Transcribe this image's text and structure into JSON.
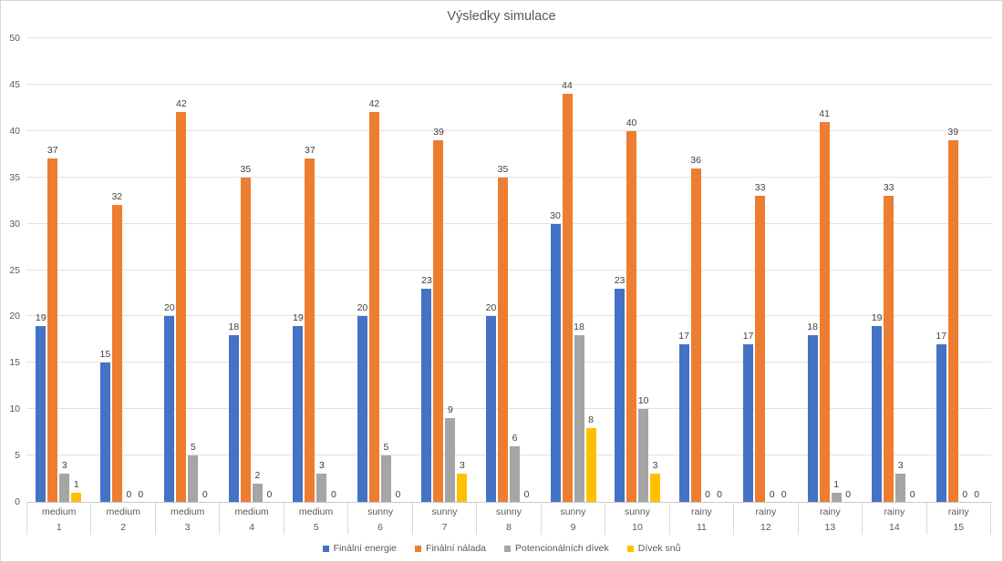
{
  "chart_data": {
    "type": "bar",
    "title": "Výsledky simulace",
    "categories": [
      "1",
      "2",
      "3",
      "4",
      "5",
      "6",
      "7",
      "8",
      "9",
      "10",
      "11",
      "12",
      "13",
      "14",
      "15"
    ],
    "category_top_labels": [
      "medium",
      "medium",
      "medium",
      "medium",
      "medium",
      "sunny",
      "sunny",
      "sunny",
      "sunny",
      "sunny",
      "rainy",
      "rainy",
      "rainy",
      "rainy",
      "rainy"
    ],
    "series": [
      {
        "name": "Finální energie",
        "color": "#4472C4",
        "values": [
          19,
          15,
          20,
          18,
          19,
          20,
          23,
          20,
          30,
          23,
          17,
          17,
          18,
          19,
          17
        ]
      },
      {
        "name": "Finální nálada",
        "color": "#ED7D31",
        "values": [
          37,
          32,
          42,
          35,
          37,
          42,
          39,
          35,
          44,
          40,
          36,
          33,
          41,
          33,
          39
        ]
      },
      {
        "name": "Potencionálních dívek",
        "color": "#A5A5A5",
        "values": [
          3,
          0,
          5,
          2,
          3,
          5,
          9,
          6,
          18,
          10,
          0,
          0,
          1,
          3,
          0
        ]
      },
      {
        "name": "Dívek snů",
        "color": "#FFC000",
        "values": [
          1,
          0,
          0,
          0,
          0,
          0,
          3,
          0,
          8,
          3,
          0,
          0,
          0,
          0,
          0
        ]
      }
    ],
    "ylim": [
      0,
      50
    ],
    "ytick_step": 5,
    "grid": true,
    "legend_position": "bottom",
    "gridline_color": "#e2e2e2",
    "axis_line_color": "#c9c9c9",
    "data_label_color": "#404040",
    "tick_label_color": "#595959"
  }
}
